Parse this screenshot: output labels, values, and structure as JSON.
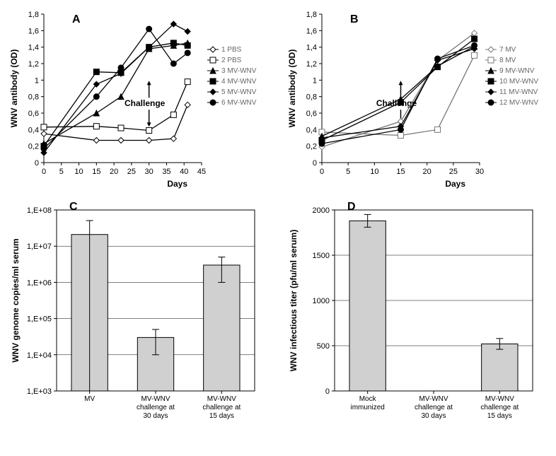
{
  "panelA": {
    "type": "line",
    "letter": "A",
    "xlabel": "Days",
    "ylabel": "WNV antibody (OD)",
    "xlim": [
      0,
      45
    ],
    "ylim": [
      0,
      1.8
    ],
    "xticks": [
      0,
      5,
      10,
      15,
      20,
      25,
      30,
      35,
      40,
      45
    ],
    "yticks": [
      0,
      0.2,
      0.4,
      0.6,
      0.8,
      1.0,
      1.2,
      1.4,
      1.6,
      1.8
    ],
    "ytick_labels": [
      "0",
      "0,2",
      "0,4",
      "0,6",
      "0,8",
      "1",
      "1,2",
      "1,4",
      "1,6",
      "1,8"
    ],
    "challenge_x": 30,
    "challenge_text": "Challenge",
    "series": [
      {
        "name": "1 PBS",
        "marker": "diamond",
        "fill": "none",
        "color": "#000",
        "pts": [
          [
            0,
            0.35
          ],
          [
            15,
            0.27
          ],
          [
            22,
            0.27
          ],
          [
            30,
            0.27
          ],
          [
            37,
            0.29
          ],
          [
            41,
            0.7
          ]
        ]
      },
      {
        "name": "2 PBS",
        "marker": "square",
        "fill": "none",
        "color": "#000",
        "pts": [
          [
            0,
            0.43
          ],
          [
            15,
            0.44
          ],
          [
            22,
            0.42
          ],
          [
            30,
            0.39
          ],
          [
            37,
            0.58
          ],
          [
            41,
            0.98
          ]
        ]
      },
      {
        "name": "3 MV-WNV",
        "marker": "triangle",
        "fill": "#000",
        "color": "#000",
        "pts": [
          [
            0,
            0.23
          ],
          [
            15,
            0.6
          ],
          [
            22,
            0.8
          ],
          [
            30,
            1.38
          ],
          [
            37,
            1.42
          ],
          [
            41,
            1.45
          ]
        ]
      },
      {
        "name": "4 MV-WNV",
        "marker": "square",
        "fill": "#000",
        "color": "#000",
        "pts": [
          [
            0,
            0.2
          ],
          [
            15,
            1.1
          ],
          [
            22,
            1.09
          ],
          [
            30,
            1.4
          ],
          [
            37,
            1.45
          ],
          [
            41,
            1.42
          ]
        ]
      },
      {
        "name": "5 MV-WNV",
        "marker": "diamond",
        "fill": "#000",
        "color": "#000",
        "pts": [
          [
            0,
            0.12
          ],
          [
            15,
            0.95
          ],
          [
            22,
            1.08
          ],
          [
            30,
            1.4
          ],
          [
            37,
            1.68
          ],
          [
            41,
            1.59
          ]
        ]
      },
      {
        "name": "6 MV-WNV",
        "marker": "circle",
        "fill": "#000",
        "color": "#000",
        "pts": [
          [
            0,
            0.17
          ],
          [
            15,
            0.8
          ],
          [
            22,
            1.15
          ],
          [
            30,
            1.62
          ],
          [
            37,
            1.2
          ],
          [
            41,
            1.33
          ]
        ]
      }
    ]
  },
  "panelB": {
    "type": "line",
    "letter": "B",
    "xlabel": "Days",
    "ylabel": "WNV antibody (OD)",
    "xlim": [
      0,
      30
    ],
    "ylim": [
      0,
      1.8
    ],
    "xticks": [
      0,
      5,
      10,
      15,
      20,
      25,
      30
    ],
    "yticks": [
      0,
      0.2,
      0.4,
      0.6,
      0.8,
      1.0,
      1.2,
      1.4,
      1.6,
      1.8
    ],
    "ytick_labels": [
      "0",
      "0,2",
      "0,4",
      "0,6",
      "0,8",
      "1",
      "1,2",
      "1,4",
      "1,6",
      "1,8"
    ],
    "challenge_x": 15,
    "challenge_text": "Challenge",
    "series": [
      {
        "name": "7 MV",
        "marker": "diamond",
        "fill": "none",
        "color": "#777",
        "pts": [
          [
            0,
            0.19
          ],
          [
            15,
            0.5
          ],
          [
            22,
            1.24
          ],
          [
            29,
            1.57
          ]
        ]
      },
      {
        "name": "8 MV",
        "marker": "square",
        "fill": "none",
        "color": "#777",
        "pts": [
          [
            0,
            0.37
          ],
          [
            15,
            0.33
          ],
          [
            22,
            0.4
          ],
          [
            29,
            1.3
          ]
        ]
      },
      {
        "name": "9 MV-WNV",
        "marker": "triangle",
        "fill": "#000",
        "color": "#000",
        "pts": [
          [
            0,
            0.32
          ],
          [
            15,
            0.77
          ],
          [
            22,
            1.17
          ],
          [
            29,
            1.41
          ]
        ]
      },
      {
        "name": "10 MV-WNV",
        "marker": "square",
        "fill": "#000",
        "color": "#000",
        "pts": [
          [
            0,
            0.27
          ],
          [
            15,
            0.73
          ],
          [
            22,
            1.16
          ],
          [
            29,
            1.5
          ]
        ]
      },
      {
        "name": "11 MV-WNV",
        "marker": "diamond",
        "fill": "#000",
        "color": "#000",
        "pts": [
          [
            0,
            0.3
          ],
          [
            15,
            0.44
          ],
          [
            22,
            1.24
          ],
          [
            29,
            1.38
          ]
        ]
      },
      {
        "name": "12 MV-WNV",
        "marker": "circle",
        "fill": "#000",
        "color": "#000",
        "pts": [
          [
            0,
            0.23
          ],
          [
            15,
            0.4
          ],
          [
            22,
            1.26
          ],
          [
            29,
            1.42
          ]
        ]
      }
    ]
  },
  "panelC": {
    "type": "bar",
    "letter": "C",
    "ylabel": "WNV genome copies/ml serum",
    "yscale": "log",
    "ylim": [
      1000.0,
      100000000.0
    ],
    "yticks": [
      1000.0,
      10000.0,
      100000.0,
      1000000.0,
      10000000.0,
      100000000.0
    ],
    "ytick_labels": [
      "1,E+03",
      "1,E+04",
      "1,E+05",
      "1,E+06",
      "1,E+07",
      "1,E+08"
    ],
    "categories": [
      "MV",
      "MV-WNV\nchallenge at\n30 days",
      "MV-WNV\nchallenge at\n15 days"
    ],
    "values": [
      21000000.0,
      30000.0,
      3000000.0
    ],
    "errors": [
      30000000.0,
      20000.0,
      2000000.0
    ],
    "bar_color": "#d0d0d0",
    "grid_color": "#000"
  },
  "panelD": {
    "type": "bar",
    "letter": "D",
    "ylabel": "WNV infectious titer (pfu/ml serum)",
    "yscale": "linear",
    "ylim": [
      0,
      2000
    ],
    "yticks": [
      0,
      500,
      1000,
      1500,
      2000
    ],
    "ytick_labels": [
      "0",
      "500",
      "1000",
      "1500",
      "2000"
    ],
    "categories": [
      "Mock\nimmunized",
      "MV-WNV\nchallenge at\n30 days",
      "MV-WNV\nchallenge at\n15 days"
    ],
    "values": [
      1880,
      0,
      520
    ],
    "errors": [
      70,
      0,
      60
    ],
    "bar_color": "#d0d0d0",
    "grid_color": "#000"
  },
  "colors": {
    "background": "#ffffff",
    "axis": "#000000",
    "bar_fill": "#d0d0d0"
  },
  "fonts": {
    "axis_label_size": 12,
    "tick_label_size": 11,
    "panel_letter_size": 16,
    "legend_size": 10
  }
}
